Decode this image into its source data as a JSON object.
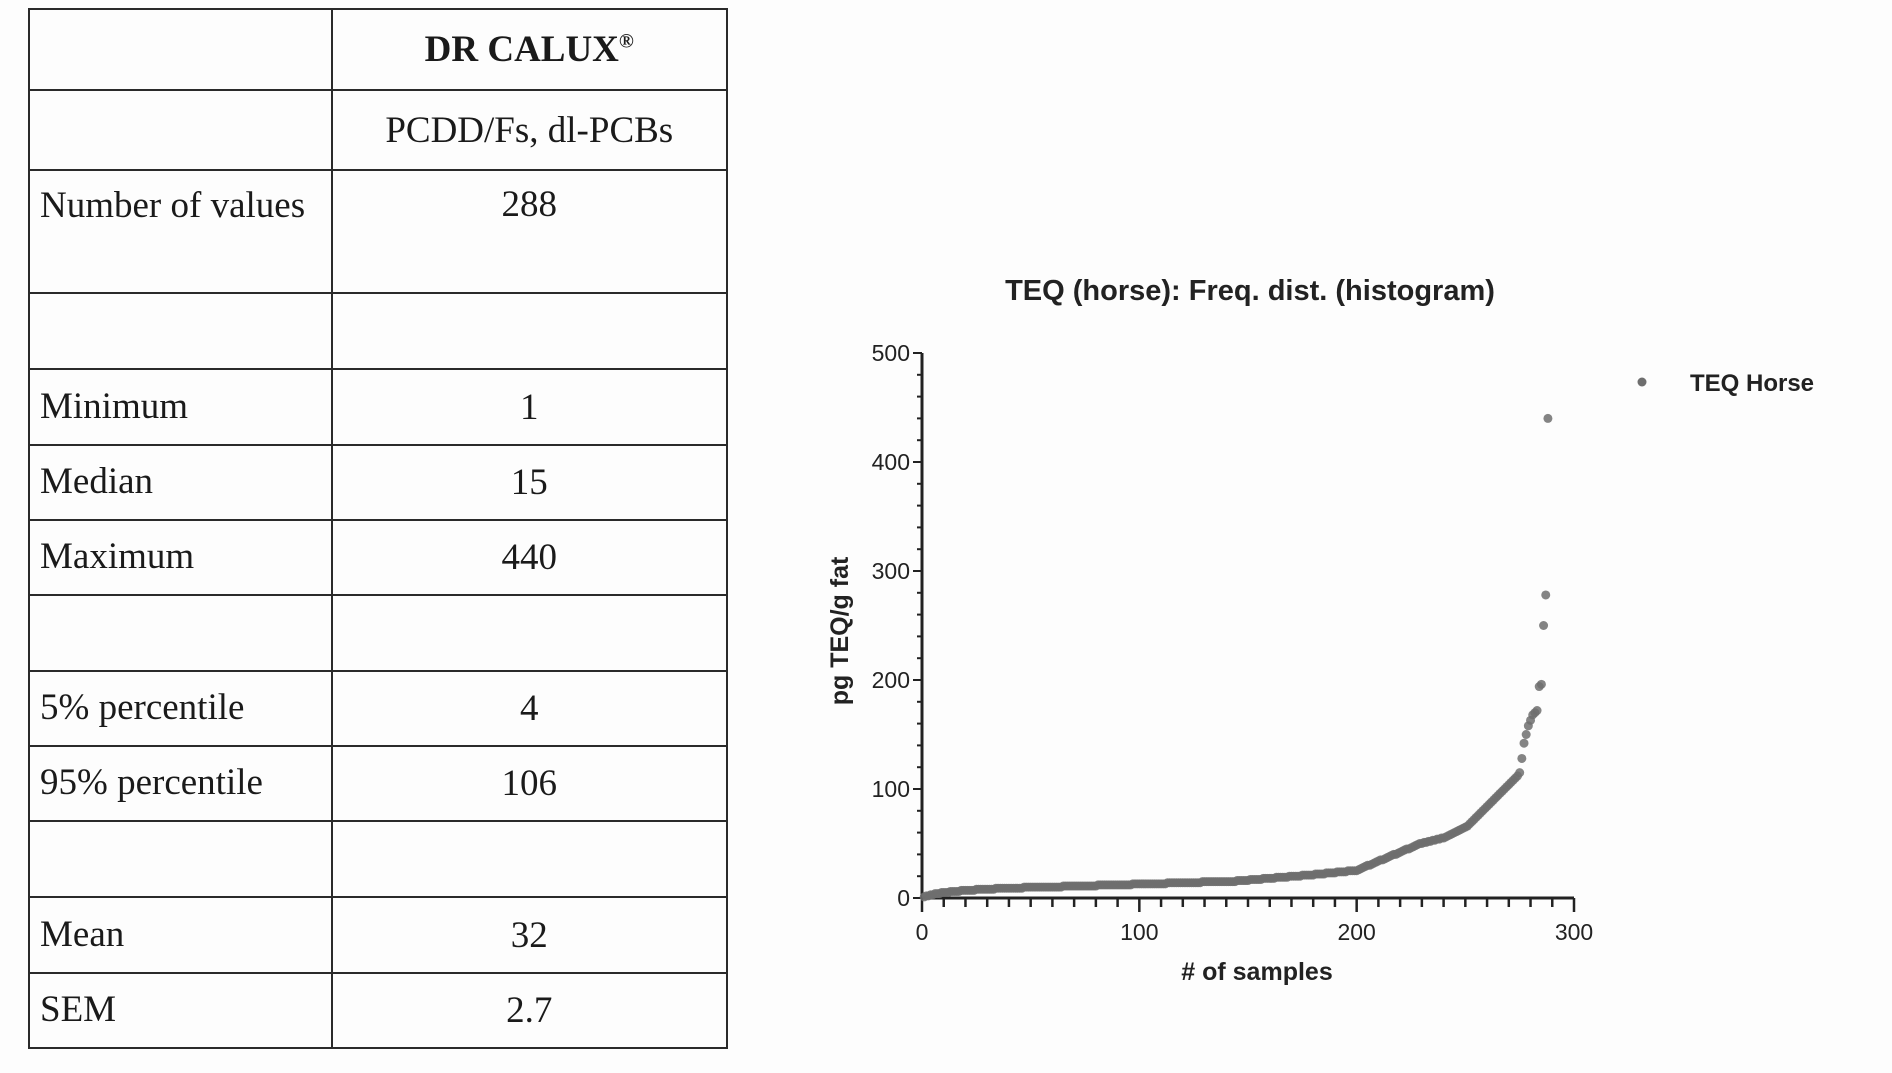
{
  "table": {
    "header": {
      "title": "DR CALUX",
      "title_mark": "®",
      "subtitle": "PCDD/Fs, dl-PCBs"
    },
    "rows": [
      {
        "label": "Number of values",
        "value": "288"
      },
      {
        "label": "",
        "value": ""
      },
      {
        "label": "Minimum",
        "value": "1"
      },
      {
        "label": "Median",
        "value": "15"
      },
      {
        "label": "Maximum",
        "value": "440"
      },
      {
        "label": "",
        "value": ""
      },
      {
        "label": "5% percentile",
        "value": "4"
      },
      {
        "label": "95% percentile",
        "value": "106"
      },
      {
        "label": "",
        "value": ""
      },
      {
        "label": "Mean",
        "value": "32"
      },
      {
        "label": "SEM",
        "value": "2.7"
      }
    ]
  },
  "chart_data": {
    "type": "scatter",
    "title": "TEQ (horse): Freq. dist. (histogram)",
    "xlabel": "# of samples",
    "ylabel": "pg TEQ/g fat",
    "xlim": [
      0,
      300
    ],
    "ylim": [
      0,
      500
    ],
    "xticks": [
      "0",
      "100",
      "200",
      "300"
    ],
    "yticks": [
      "0",
      "100",
      "200",
      "300",
      "400",
      "500"
    ],
    "grid": false,
    "legend": {
      "placement": "top-right",
      "entries": [
        "TEQ Horse"
      ]
    },
    "marker_color": "#6e6e6e",
    "series": [
      {
        "name": "TEQ Horse",
        "values": [
          1,
          2,
          2,
          3,
          3,
          4,
          4,
          4,
          5,
          5,
          5,
          5,
          6,
          6,
          6,
          6,
          6,
          7,
          7,
          7,
          7,
          7,
          7,
          7,
          8,
          8,
          8,
          8,
          8,
          8,
          8,
          8,
          8,
          9,
          9,
          9,
          9,
          9,
          9,
          9,
          9,
          9,
          9,
          9,
          9,
          9,
          10,
          10,
          10,
          10,
          10,
          10,
          10,
          10,
          10,
          10,
          10,
          10,
          10,
          10,
          10,
          10,
          10,
          10,
          11,
          11,
          11,
          11,
          11,
          11,
          11,
          11,
          11,
          11,
          11,
          11,
          11,
          11,
          11,
          11,
          12,
          12,
          12,
          12,
          12,
          12,
          12,
          12,
          12,
          12,
          12,
          12,
          12,
          12,
          12,
          12,
          13,
          13,
          13,
          13,
          13,
          13,
          13,
          13,
          13,
          13,
          13,
          13,
          13,
          13,
          13,
          13,
          14,
          14,
          14,
          14,
          14,
          14,
          14,
          14,
          14,
          14,
          14,
          14,
          14,
          14,
          14,
          14,
          15,
          15,
          15,
          15,
          15,
          15,
          15,
          15,
          15,
          15,
          15,
          15,
          15,
          15,
          15,
          15,
          16,
          16,
          16,
          16,
          16,
          16,
          17,
          17,
          17,
          17,
          17,
          17,
          18,
          18,
          18,
          18,
          18,
          18,
          19,
          19,
          19,
          19,
          19,
          19,
          20,
          20,
          20,
          20,
          20,
          20,
          21,
          21,
          21,
          21,
          21,
          21,
          22,
          22,
          22,
          22,
          22,
          23,
          23,
          23,
          23,
          23,
          24,
          24,
          24,
          24,
          24,
          25,
          25,
          25,
          25,
          25,
          26,
          27,
          28,
          29,
          30,
          30,
          31,
          32,
          33,
          34,
          35,
          35,
          36,
          37,
          38,
          39,
          40,
          40,
          41,
          42,
          43,
          44,
          45,
          45,
          46,
          47,
          48,
          49,
          50,
          50,
          51,
          51,
          52,
          52,
          53,
          53,
          54,
          54,
          55,
          55,
          56,
          57,
          58,
          59,
          60,
          61,
          62,
          63,
          64,
          65,
          66,
          68,
          70,
          72,
          74,
          76,
          78,
          80,
          82,
          84,
          86,
          88,
          90,
          92,
          94,
          96,
          98,
          100,
          102,
          104,
          106,
          108,
          110,
          112,
          115,
          128,
          142,
          150,
          158,
          163,
          168,
          170,
          172,
          194,
          196,
          250,
          278,
          440
        ]
      }
    ]
  }
}
